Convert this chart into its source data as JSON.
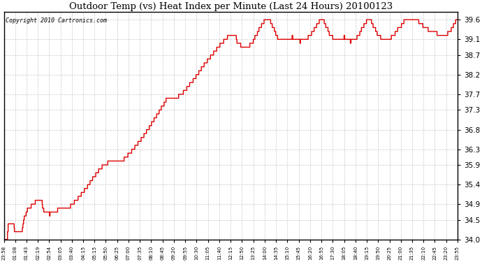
{
  "title": "Outdoor Temp (vs) Heat Index per Minute (Last 24 Hours) 20100123",
  "copyright_text": "Copyright 2010 Cartronics.com",
  "line_color": "#dd0000",
  "background_color": "#ffffff",
  "grid_color": "#bbbbbb",
  "ylim": [
    34.0,
    39.8
  ],
  "yticks": [
    34.0,
    34.5,
    34.9,
    35.4,
    35.9,
    36.3,
    36.8,
    37.3,
    37.7,
    38.2,
    38.7,
    39.1,
    39.6
  ],
  "x_labels": [
    "23:58",
    "01:08",
    "01:43",
    "02:19",
    "02:54",
    "03:05",
    "03:40",
    "04:15",
    "05:15",
    "05:50",
    "06:25",
    "07:00",
    "07:35",
    "08:10",
    "08:45",
    "09:20",
    "09:55",
    "10:30",
    "11:05",
    "11:40",
    "12:15",
    "12:50",
    "13:25",
    "14:00",
    "14:35",
    "15:10",
    "15:45",
    "16:20",
    "16:55",
    "17:30",
    "18:05",
    "18:40",
    "19:15",
    "19:50",
    "20:25",
    "21:00",
    "21:35",
    "22:10",
    "22:45",
    "23:20",
    "23:55"
  ],
  "figsize": [
    6.9,
    3.75
  ],
  "dpi": 100
}
